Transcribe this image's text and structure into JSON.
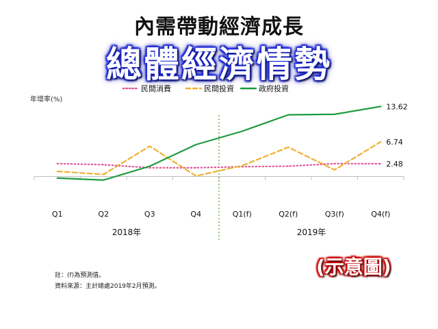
{
  "header": {
    "subtitle": "內需帶動經濟成長",
    "title": "總體經濟情勢"
  },
  "footnotes": {
    "note": "註：(f)為預測值。",
    "source": "資料來源：主計總處2019年2月預測。"
  },
  "badge": {
    "text": "(示意圖)"
  },
  "colors": {
    "private_consumption": "#e0559a",
    "private_investment": "#f0b030",
    "government_investment": "#1e9a3c",
    "divider": "#6ab04c"
  },
  "chart_data": {
    "type": "line",
    "title": "",
    "ylabel": "年增率(%)",
    "xlabel": "",
    "categories": [
      "Q1",
      "Q2",
      "Q3",
      "Q4",
      "Q1(f)",
      "Q2(f)",
      "Q3(f)",
      "Q4(f)"
    ],
    "year_groups": [
      {
        "label": "2018年",
        "from": "Q1",
        "to": "Q4"
      },
      {
        "label": "2019年",
        "from": "Q1(f)",
        "to": "Q4(f)"
      }
    ],
    "ylim": [
      -3,
      15
    ],
    "grid": false,
    "legend": "top",
    "series": [
      {
        "name": "民間消費",
        "style": "dotted",
        "values": [
          2.5,
          2.3,
          1.7,
          1.7,
          1.9,
          2.0,
          2.5,
          2.48
        ]
      },
      {
        "name": "民間投資",
        "style": "dashed",
        "values": [
          1.0,
          0.4,
          5.9,
          0.1,
          2.1,
          5.7,
          1.3,
          6.74
        ]
      },
      {
        "name": "政府投資",
        "style": "solid",
        "values": [
          -0.3,
          -0.7,
          2.0,
          6.2,
          8.8,
          12.0,
          12.1,
          13.62
        ]
      }
    ],
    "end_labels": [
      "2.48",
      "6.74",
      "13.62"
    ]
  }
}
